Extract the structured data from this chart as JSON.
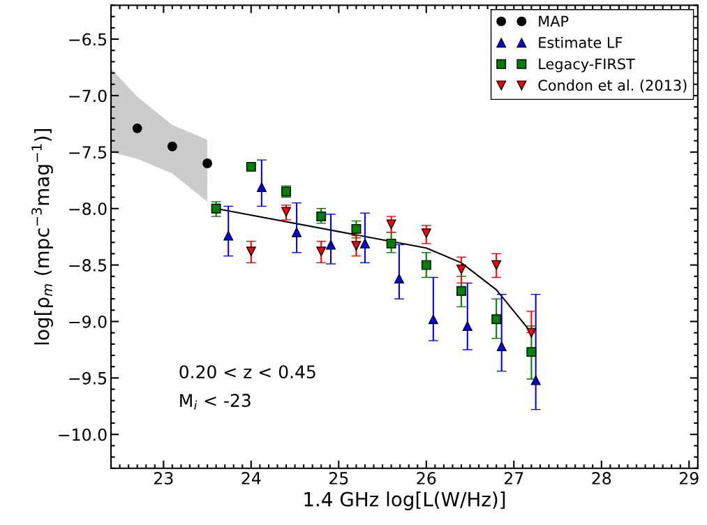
{
  "chart_data": {
    "type": "scatter",
    "xlabel": "1.4 GHz log[L(W/Hz)]",
    "ylabel": "log[ρ$_{m}$ (mpc$^{−3}$mag$^{−1}$)]",
    "xlim": [
      22.4,
      29.1
    ],
    "ylim": [
      -10.3,
      -6.2
    ],
    "xticks": [
      23,
      24,
      25,
      26,
      27,
      28,
      29
    ],
    "yticks": [
      {
        "value": -6.5,
        "label": "−6.5"
      },
      {
        "value": -7.0,
        "label": "−7.0"
      },
      {
        "value": -7.5,
        "label": "−7.5"
      },
      {
        "value": -8.0,
        "label": "−8.0"
      },
      {
        "value": -8.5,
        "label": "−8.5"
      },
      {
        "value": -9.0,
        "label": "−9.0"
      },
      {
        "value": -9.5,
        "label": "−9.5"
      },
      {
        "value": -10.0,
        "label": "−10.0"
      }
    ],
    "grid": false,
    "legend": "top right",
    "annotations": [
      "0.20 < z < 0.45",
      "M$_{i}$ < -23"
    ],
    "series": [
      {
        "name": "MAP",
        "marker": "circle",
        "color": "#000000",
        "x": [
          22.4,
          22.7,
          23.1,
          23.5
        ],
        "values": [
          null,
          -7.29,
          -7.45,
          -7.6
        ],
        "lower": [
          -7.5,
          -7.56,
          -7.69,
          -7.94
        ],
        "upper": [
          -6.76,
          -7.01,
          -7.26,
          -7.39
        ]
      },
      {
        "name": "Estimate LF",
        "marker": "triangle",
        "color": "#0000ff",
        "x": [
          23.74,
          24.12,
          24.52,
          24.91,
          25.3,
          25.69,
          26.08,
          26.47,
          26.86,
          27.25
        ],
        "values": [
          -8.24,
          -7.81,
          -8.21,
          -8.32,
          -8.31,
          -8.62,
          -8.98,
          -9.04,
          -9.22,
          -9.52
        ],
        "errors": [
          [
            -8.42,
            -7.98
          ],
          [
            -7.98,
            -7.57
          ],
          [
            -8.39,
            -7.95
          ],
          [
            -8.49,
            -8.05
          ],
          [
            -8.48,
            -8.04
          ],
          [
            -8.8,
            -8.32
          ],
          [
            -9.17,
            -8.61
          ],
          [
            -9.25,
            -8.66
          ],
          [
            -9.44,
            -8.76
          ],
          [
            -9.78,
            -8.76
          ]
        ]
      },
      {
        "name": "Legacy-FIRST",
        "marker": "square",
        "color": "#008000",
        "x": [
          23.6,
          24.0,
          24.4,
          24.8,
          25.2,
          25.6,
          26.0,
          26.4,
          26.8,
          27.2
        ],
        "values": [
          -8.0,
          -7.63,
          -7.85,
          -8.07,
          -8.18,
          -8.31,
          -8.5,
          -8.73,
          -8.98,
          -9.27
        ],
        "errors": [
          [
            -8.07,
            -7.94
          ],
          [
            -7.65,
            -7.61
          ],
          [
            -7.9,
            -7.8
          ],
          [
            -8.13,
            -8.0
          ],
          [
            -8.26,
            -8.11
          ],
          [
            -8.39,
            -8.21
          ],
          [
            -8.61,
            -8.39
          ],
          [
            -8.87,
            -8.6
          ],
          [
            -9.15,
            -8.8
          ],
          [
            -9.51,
            -9.04
          ]
        ]
      },
      {
        "name": "Condon et al. (2013)",
        "marker": "triangle_down",
        "color": "#ff0000",
        "x": [
          24.0,
          24.4,
          24.8,
          25.2,
          25.6,
          26.0,
          26.4,
          26.8,
          27.2
        ],
        "values": [
          -8.38,
          -8.03,
          -8.38,
          -8.33,
          -8.14,
          -8.22,
          -8.54,
          -8.5,
          -9.1
        ],
        "errors": [
          [
            -8.48,
            -8.29
          ],
          [
            -8.1,
            -7.97
          ],
          [
            -8.48,
            -8.29
          ],
          [
            -8.42,
            -8.24
          ],
          [
            -8.21,
            -8.07
          ],
          [
            -8.31,
            -8.15
          ],
          [
            -8.66,
            -8.43
          ],
          [
            -8.61,
            -8.4
          ],
          [
            -9.1,
            -8.91
          ]
        ]
      },
      {
        "type": "line",
        "color": "#000000",
        "x": [
          23.6,
          26.0,
          26.4,
          26.8,
          27.2
        ],
        "values": [
          -8.0,
          -8.35,
          -8.48,
          -8.72,
          -9.1
        ]
      }
    ]
  }
}
